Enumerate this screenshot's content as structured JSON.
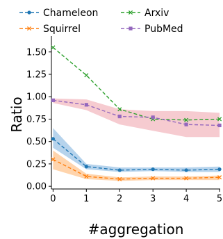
{
  "chart_data": {
    "type": "line",
    "xlabel": "#aggregation",
    "ylabel": "Ratio",
    "x": [
      0,
      1,
      2,
      3,
      4,
      5
    ],
    "xlim": [
      0,
      5
    ],
    "ylim": [
      0,
      1.6
    ],
    "xticks": [
      "0",
      "1",
      "2",
      "3",
      "4",
      "5"
    ],
    "yticks": [
      "0.00",
      "0.25",
      "0.50",
      "0.75",
      "1.00",
      "1.25",
      "1.50"
    ],
    "legend_position": "top",
    "series": [
      {
        "name": "Chameleon",
        "color": "#1f77b4",
        "marker": "circle",
        "values": [
          0.53,
          0.22,
          0.18,
          0.19,
          0.18,
          0.19
        ],
        "band_low": [
          0.43,
          0.19,
          0.16,
          0.17,
          0.16,
          0.16
        ],
        "band_high": [
          0.65,
          0.25,
          0.21,
          0.21,
          0.21,
          0.22
        ]
      },
      {
        "name": "Squirrel",
        "color": "#ff7f0e",
        "marker": "x",
        "values": [
          0.3,
          0.11,
          0.08,
          0.09,
          0.09,
          0.1
        ],
        "band_low": [
          0.19,
          0.08,
          0.06,
          0.07,
          0.07,
          0.07
        ],
        "band_high": [
          0.4,
          0.14,
          0.1,
          0.11,
          0.11,
          0.12
        ]
      },
      {
        "name": "Arxiv",
        "color": "#2ca02c",
        "marker": "x",
        "values": [
          1.55,
          1.24,
          0.86,
          0.75,
          0.74,
          0.75
        ],
        "band_low": null,
        "band_high": null
      },
      {
        "name": "PubMed",
        "color": "#9467bd",
        "marker": "square",
        "values": [
          0.96,
          0.91,
          0.78,
          0.77,
          0.69,
          0.68
        ],
        "band_low": [
          0.93,
          0.85,
          0.69,
          0.62,
          0.55,
          0.55
        ],
        "band_high": [
          0.98,
          0.97,
          0.86,
          0.84,
          0.84,
          0.82
        ]
      }
    ],
    "band_colors": {
      "Chameleon": "#9ec4e6",
      "Squirrel": "#ffc690",
      "PubMed": "#f3b9c0"
    }
  }
}
